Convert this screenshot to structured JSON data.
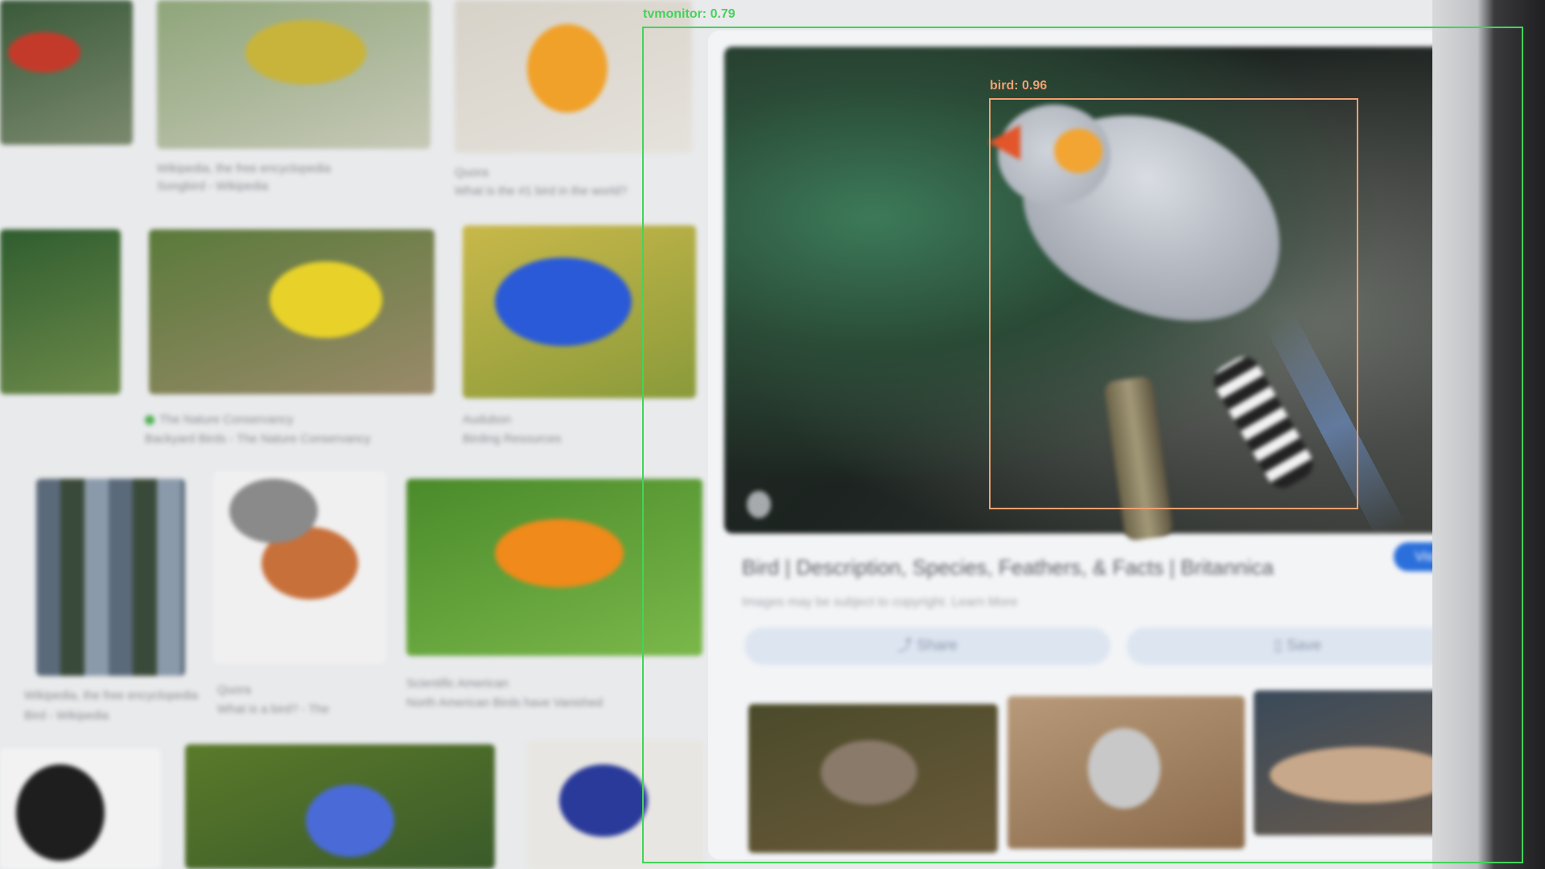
{
  "detections": [
    {
      "label": "tvmonitor",
      "confidence": "0.79",
      "color": "#44d35a"
    },
    {
      "label": "bird",
      "confidence": "0.96",
      "color": "#f0a070"
    }
  ],
  "detail": {
    "title": "Bird | Description, Species, Feathers, & Facts | Britannica",
    "copyright": "Images may be subject to copyright. Learn More",
    "visit_label": "Visit",
    "share_label": "Share",
    "save_label": "Save"
  },
  "grid_captions": [
    {
      "source": "Wikipedia, the free encyclopedia",
      "title": "Songbird - Wikipedia"
    },
    {
      "source": "Quora",
      "title": "What is the #1 bird in the world?"
    },
    {
      "source": "The Nature Conservancy",
      "title": "Backyard Birds - The Nature Conservancy"
    },
    {
      "source": "Audubon",
      "title": "Birding Resources"
    },
    {
      "source": "Wikipedia, the free encyclopedia",
      "title": "Bird - Wikipedia"
    },
    {
      "source": "Quora",
      "title": "What is a bird? - The"
    },
    {
      "source": "Scientific American",
      "title": "North American Birds have Vanished"
    }
  ],
  "colors": {
    "screen": "#e9eaec",
    "accent": "#2a6fdb"
  }
}
